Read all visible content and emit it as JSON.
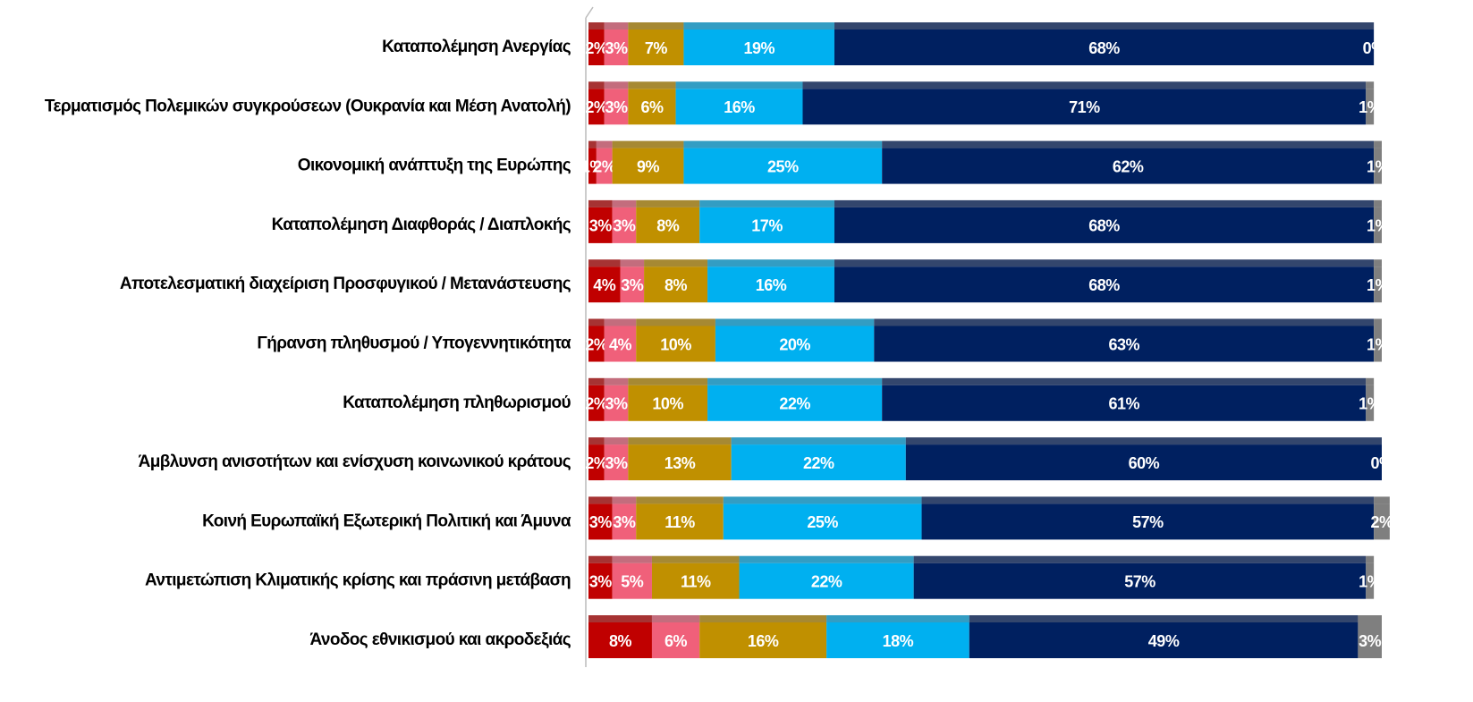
{
  "chart_data": {
    "type": "stacked-bar-horizontal",
    "categories": [
      "Καταπολέμηση Ανεργίας",
      "Τερματισμός Πολεμικών συγκρούσεων (Ουκρανία και Μέση Ανατολή)",
      "Οικονομική ανάπτυξη της Ευρώπης",
      "Καταπολέμηση Διαφθοράς / Διαπλοκής",
      "Αποτελεσματική διαχείριση Προσφυγικού / Μετανάστευσης",
      "Γήρανση πληθυσμού / Υπογεννητικότητα",
      "Καταπολέμηση πληθωρισμού",
      "Άμβλυνση ανισοτήτων και ενίσχυση κοινωνικού κράτους",
      "Κοινή Ευρωπαϊκή Εξωτερική Πολιτική και Άμυνα",
      "Αντιμετώπιση Κλιματικής κρίσης και πράσινη μετάβαση",
      "Άνοδος εθνικισμού και ακροδεξιάς"
    ],
    "series": [
      {
        "color": "#c00000",
        "values": [
          2,
          2,
          1,
          3,
          4,
          2,
          2,
          2,
          3,
          3,
          8
        ],
        "value_labels": [
          "2%",
          "2%",
          "1%",
          "3%",
          "4%",
          "2%",
          "2%",
          "2%",
          "3%",
          "3%",
          "8%"
        ]
      },
      {
        "color": "#f0607a",
        "values": [
          3,
          3,
          2,
          3,
          3,
          4,
          3,
          3,
          3,
          5,
          6
        ],
        "value_labels": [
          "3%",
          "3%",
          "2%",
          "3%",
          "3%",
          "4%",
          "3%",
          "3%",
          "3%",
          "5%",
          "6%"
        ]
      },
      {
        "color": "#c09000",
        "values": [
          7,
          6,
          9,
          8,
          8,
          10,
          10,
          13,
          11,
          11,
          16
        ],
        "value_labels": [
          "7%",
          "6%",
          "9%",
          "8%",
          "8%",
          "10%",
          "10%",
          "13%",
          "11%",
          "11%",
          "16%"
        ]
      },
      {
        "color": "#00b0f0",
        "values": [
          19,
          16,
          25,
          17,
          16,
          20,
          22,
          22,
          25,
          22,
          18
        ],
        "value_labels": [
          "19%",
          "16%",
          "25%",
          "17%",
          "16%",
          "20%",
          "22%",
          "22%",
          "25%",
          "22%",
          "18%"
        ]
      },
      {
        "color": "#002060",
        "values": [
          68,
          71,
          62,
          68,
          68,
          63,
          61,
          60,
          57,
          57,
          49
        ],
        "value_labels": [
          "68%",
          "71%",
          "62%",
          "68%",
          "68%",
          "63%",
          "61%",
          "60%",
          "57%",
          "57%",
          "49%"
        ]
      },
      {
        "color": "#7f7f7f",
        "values": [
          0,
          1,
          1,
          1,
          1,
          1,
          1,
          0,
          2,
          1,
          3
        ],
        "value_labels": [
          "0%",
          "1%",
          "1%",
          "1%",
          "1%",
          "1%",
          "1%",
          "0%",
          "2%",
          "1%",
          "3%"
        ]
      }
    ],
    "xlim": [
      0,
      100
    ]
  }
}
